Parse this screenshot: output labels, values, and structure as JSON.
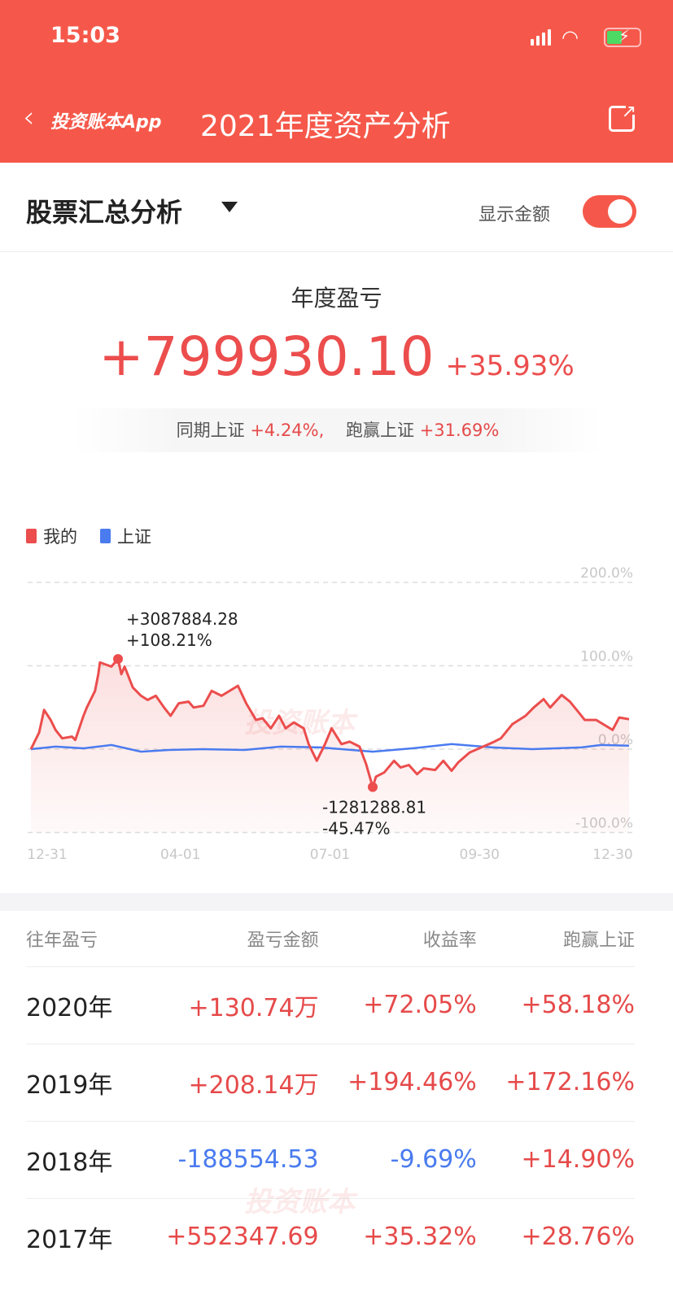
{
  "status_bar": {
    "time": "15:03",
    "icons": [
      "signal-icon",
      "wifi-icon",
      "battery-charging-icon"
    ]
  },
  "nav": {
    "back_label": "投资账本App",
    "title": "2021年度资产分析",
    "share_icon": "share-icon"
  },
  "section": {
    "title": "股票汇总分析",
    "toggle_label": "显示金额",
    "toggle_on": true
  },
  "summary": {
    "label": "年度盈亏",
    "amount": "+799930.10",
    "pct": "+35.93%",
    "index_label": "同期上证",
    "index_pct": "+4.24%,",
    "beat_label": "跑赢上证",
    "beat_pct": "+31.69%"
  },
  "watermark": "投资账本",
  "colors": {
    "brand": "#f5584a",
    "positive": "#e64a4a",
    "negative": "#4a7bef"
  },
  "chart_data": {
    "type": "line",
    "legend": [
      "我的",
      "上证"
    ],
    "legend_position": "top-left",
    "x_ticks": [
      "12-31",
      "04-01",
      "07-01",
      "09-30",
      "12-30"
    ],
    "y_ticks": [
      "200.0%",
      "100.0%",
      "0.0%",
      "-100.0%"
    ],
    "ylim": [
      -100,
      200
    ],
    "grid": true,
    "series": [
      {
        "name": "我的",
        "color": "#ec4d4d",
        "points": [
          [
            "2020-12-31",
            0
          ],
          [
            "2021-01-05",
            20
          ],
          [
            "2021-01-08",
            47
          ],
          [
            "2021-01-12",
            35
          ],
          [
            "2021-01-15",
            23
          ],
          [
            "2021-01-19",
            13
          ],
          [
            "2021-01-25",
            15
          ],
          [
            "2021-01-27",
            11
          ],
          [
            "2021-02-01",
            40
          ],
          [
            "2021-02-03",
            50
          ],
          [
            "2021-02-08",
            70
          ],
          [
            "2021-02-10",
            90
          ],
          [
            "2021-02-11",
            104
          ],
          [
            "2021-02-18",
            99
          ],
          [
            "2021-02-22",
            108.21
          ],
          [
            "2021-02-24",
            90
          ],
          [
            "2021-02-26",
            99
          ],
          [
            "2021-03-03",
            74
          ],
          [
            "2021-03-08",
            64
          ],
          [
            "2021-03-12",
            59
          ],
          [
            "2021-03-17",
            64
          ],
          [
            "2021-03-22",
            50
          ],
          [
            "2021-03-26",
            40
          ],
          [
            "2021-03-31",
            55
          ],
          [
            "2021-04-06",
            57
          ],
          [
            "2021-04-09",
            50
          ],
          [
            "2021-04-15",
            52
          ],
          [
            "2021-04-20",
            70
          ],
          [
            "2021-04-26",
            64
          ],
          [
            "2021-05-06",
            76
          ],
          [
            "2021-05-11",
            55
          ],
          [
            "2021-05-17",
            35
          ],
          [
            "2021-05-21",
            37
          ],
          [
            "2021-05-26",
            25
          ],
          [
            "2021-05-31",
            40
          ],
          [
            "2021-06-04",
            25
          ],
          [
            "2021-06-09",
            32
          ],
          [
            "2021-06-15",
            25
          ],
          [
            "2021-06-18",
            6
          ],
          [
            "2021-06-23",
            -14
          ],
          [
            "2021-06-28",
            6
          ],
          [
            "2021-07-02",
            25
          ],
          [
            "2021-07-08",
            6
          ],
          [
            "2021-07-13",
            9
          ],
          [
            "2021-07-19",
            3
          ],
          [
            "2021-07-23",
            -18
          ],
          [
            "2021-07-27",
            -45.47
          ],
          [
            "2021-07-29",
            -33
          ],
          [
            "2021-08-03",
            -28
          ],
          [
            "2021-08-09",
            -14
          ],
          [
            "2021-08-13",
            -22
          ],
          [
            "2021-08-18",
            -19
          ],
          [
            "2021-08-23",
            -30
          ],
          [
            "2021-08-27",
            -23
          ],
          [
            "2021-09-03",
            -25
          ],
          [
            "2021-09-08",
            -14
          ],
          [
            "2021-09-13",
            -26
          ],
          [
            "2021-09-17",
            -16
          ],
          [
            "2021-09-24",
            -4
          ],
          [
            "2021-10-08",
            8
          ],
          [
            "2021-10-13",
            13
          ],
          [
            "2021-10-20",
            30
          ],
          [
            "2021-10-28",
            40
          ],
          [
            "2021-11-02",
            50
          ],
          [
            "2021-11-08",
            60
          ],
          [
            "2021-11-12",
            50
          ],
          [
            "2021-11-19",
            65
          ],
          [
            "2021-11-24",
            57
          ],
          [
            "2021-11-29",
            45
          ],
          [
            "2021-12-03",
            35
          ],
          [
            "2021-12-10",
            35
          ],
          [
            "2021-12-20",
            23
          ],
          [
            "2021-12-24",
            38
          ],
          [
            "2021-12-30",
            35.93
          ]
        ]
      },
      {
        "name": "上证",
        "color": "#4a7bef",
        "points": [
          [
            "2020-12-31",
            0
          ],
          [
            "2021-01-15",
            3
          ],
          [
            "2021-02-01",
            1
          ],
          [
            "2021-02-18",
            5
          ],
          [
            "2021-03-08",
            -3
          ],
          [
            "2021-03-25",
            -1
          ],
          [
            "2021-04-15",
            0
          ],
          [
            "2021-05-10",
            -1
          ],
          [
            "2021-06-01",
            3
          ],
          [
            "2021-06-25",
            2
          ],
          [
            "2021-07-27",
            -3
          ],
          [
            "2021-08-20",
            1
          ],
          [
            "2021-09-13",
            6
          ],
          [
            "2021-10-08",
            2
          ],
          [
            "2021-11-01",
            0
          ],
          [
            "2021-12-01",
            2
          ],
          [
            "2021-12-13",
            5
          ],
          [
            "2021-12-30",
            4.24
          ]
        ]
      }
    ],
    "annotations": [
      {
        "date": "2021-02-22",
        "amount": "+3087884.28",
        "pct": "+108.21%"
      },
      {
        "date": "2021-07-27",
        "amount": "-1281288.81",
        "pct": "-45.47%"
      }
    ]
  },
  "history": {
    "headers": [
      "往年盈亏",
      "盈亏金额",
      "收益率",
      "跑赢上证"
    ],
    "rows": [
      {
        "year": "2020年",
        "amount": "+130.74万",
        "rate": "+72.05%",
        "beat": "+58.18%",
        "amount_sign": "pos",
        "rate_sign": "pos",
        "beat_sign": "pos"
      },
      {
        "year": "2019年",
        "amount": "+208.14万",
        "rate": "+194.46%",
        "beat": "+172.16%",
        "amount_sign": "pos",
        "rate_sign": "pos",
        "beat_sign": "pos"
      },
      {
        "year": "2018年",
        "amount": "-188554.53",
        "rate": "-9.69%",
        "beat": "+14.90%",
        "amount_sign": "neg",
        "rate_sign": "neg",
        "beat_sign": "pos"
      },
      {
        "year": "2017年",
        "amount": "+552347.69",
        "rate": "+35.32%",
        "beat": "+28.76%",
        "amount_sign": "pos",
        "rate_sign": "pos",
        "beat_sign": "pos"
      }
    ]
  }
}
